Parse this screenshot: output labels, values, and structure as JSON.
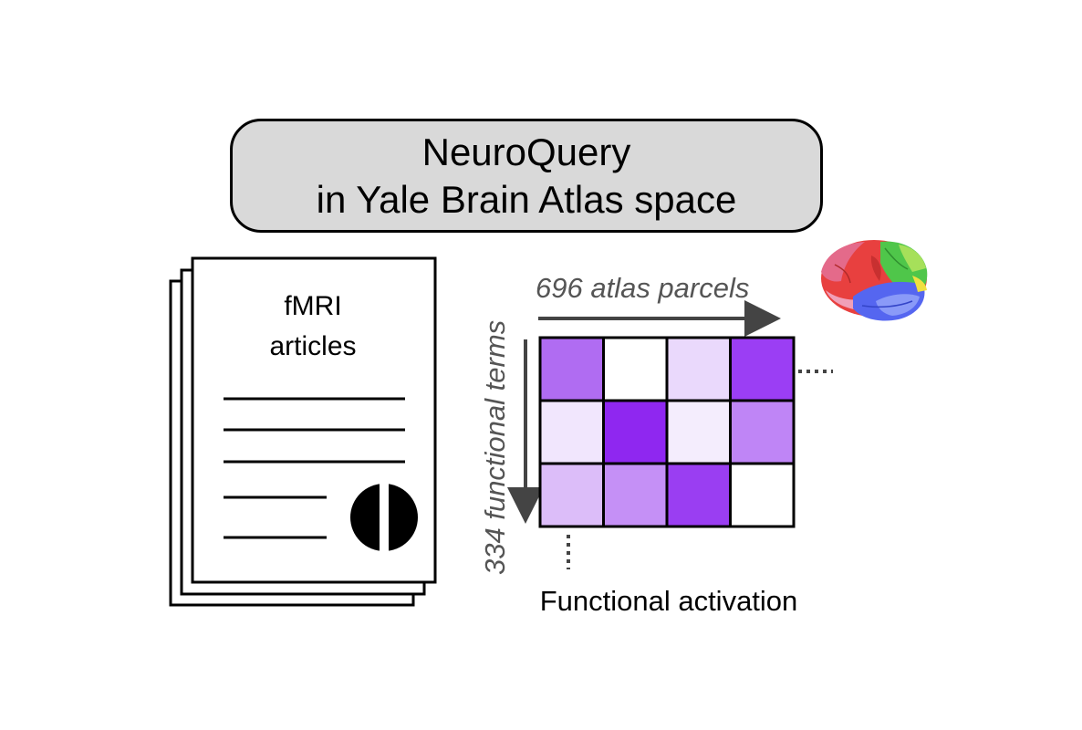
{
  "title": {
    "line1": "NeuroQuery",
    "line2": "in Yale Brain Atlas space"
  },
  "articles": {
    "label_line1": "fMRI",
    "label_line2": "articles",
    "logo_icon": "neuroquery-logo-icon"
  },
  "matrix": {
    "columns_label": "696 atlas parcels",
    "rows_label": "334 functional terms",
    "caption": "Functional activation",
    "cell_colors": [
      [
        "#b06cf2",
        "#ffffff",
        "#ead9fc",
        "#9b3ef4"
      ],
      [
        "#f1e6fd",
        "#8f27f0",
        "#f4edfd",
        "#bf85f6"
      ],
      [
        "#dcbdf9",
        "#c590f6",
        "#9a3ef2",
        "#ffffff"
      ]
    ],
    "brain_icon": "brain-atlas-icon"
  },
  "colors": {
    "title_box_fill": "#d9d9d9",
    "axis_label": "#555555",
    "arrow": "#444444"
  }
}
